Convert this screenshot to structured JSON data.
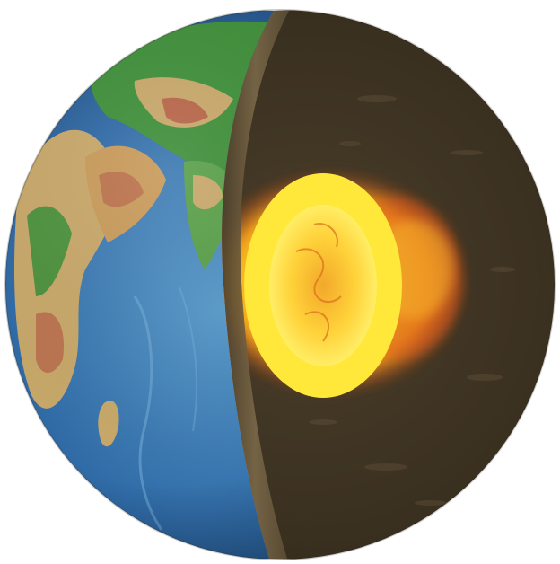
{
  "image": {
    "subject": "earth-cutaway-globe",
    "background_color": "#ffffff",
    "palette": {
      "ocean_deep": "#1f4f86",
      "ocean_shallow": "#4f8fbe",
      "land_green": "#3f8f3a",
      "land_tan": "#c8a86a",
      "mountain_red": "#b8664a",
      "mantle_dark": "#3b3222",
      "mantle_light": "#5a4a34",
      "rim_brown": "#6a5a3e",
      "core_yellow": "#ffe83a",
      "core_orange": "#f39a1a",
      "core_red": "#c8401a"
    }
  }
}
